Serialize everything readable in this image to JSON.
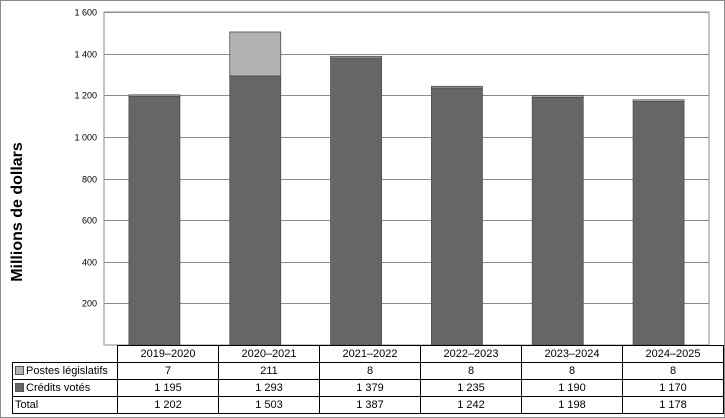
{
  "chart_data": {
    "type": "bar",
    "stacked": true,
    "categories": [
      "2019–2020",
      "2020–2021",
      "2021–2022",
      "2022–2023",
      "2023–2024",
      "2024–2025"
    ],
    "series": [
      {
        "name": "Crédits votés",
        "values": [
          1195,
          1293,
          1379,
          1235,
          1190,
          1170
        ],
        "display": [
          "1 195",
          "1 293",
          "1 379",
          "1 235",
          "1 190",
          "1 170"
        ],
        "color": "#666666"
      },
      {
        "name": "Postes législatifs",
        "values": [
          7,
          211,
          8,
          8,
          8,
          8
        ],
        "display": [
          "7",
          "211",
          "8",
          "8",
          "8",
          "8"
        ],
        "color": "#b3b3b3"
      }
    ],
    "totals": {
      "label": "Total",
      "values": [
        1202,
        1503,
        1387,
        1242,
        1198,
        1178
      ],
      "display": [
        "1 202",
        "1 503",
        "1 387",
        "1 242",
        "1 198",
        "1 178"
      ]
    },
    "ylabel": "Millions de dollars",
    "ylim": [
      0,
      1600
    ],
    "yticks": [
      200,
      400,
      600,
      800,
      1000,
      1200,
      1400,
      1600
    ],
    "ytick_labels": [
      "200",
      "400",
      "600",
      "800",
      "1 000",
      "1 200",
      "1 400",
      "1 600"
    ],
    "grid": true,
    "legend": "data-table"
  }
}
